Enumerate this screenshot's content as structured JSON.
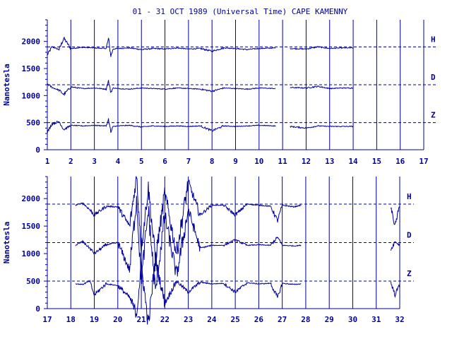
{
  "chart_data": [
    {
      "type": "line",
      "title": "01 - 31 OCT 1989 (Universal Time) CAPE KAMENNY",
      "ylabel": "Nanotesla",
      "xlim": [
        1,
        17
      ],
      "ylim": [
        0,
        2400
      ],
      "x_ticks": [
        "1",
        "2",
        "3",
        "4",
        "5",
        "6",
        "7",
        "8",
        "9",
        "10",
        "11",
        "12",
        "13",
        "14",
        "15",
        "16",
        "17"
      ],
      "y_ticks": [
        "0",
        "500",
        "1000",
        "1500",
        "2000"
      ],
      "grid": "vertical lines at each day",
      "reference_lines": {
        "H": 1900,
        "D": 1200,
        "Z": 500
      },
      "data_gaps": [
        [
          10.7,
          11.3
        ],
        [
          14.0,
          17.0
        ]
      ],
      "series": [
        {
          "name": "H",
          "base": 1880,
          "x": [
            1.0,
            1.2,
            1.5,
            1.7,
            2.0,
            2.5,
            3.0,
            3.5,
            3.6,
            3.7,
            3.8,
            4.0,
            4.5,
            5.0,
            5.5,
            6.0,
            6.5,
            7.0,
            7.5,
            8.0,
            8.5,
            9.0,
            9.5,
            10.0,
            10.7,
            11.3,
            12.0,
            12.5,
            13.0,
            13.5,
            14.0
          ],
          "values": [
            1750,
            1900,
            1850,
            2060,
            1870,
            1890,
            1880,
            1870,
            2050,
            1730,
            1860,
            1870,
            1880,
            1850,
            1870,
            1860,
            1880,
            1860,
            1870,
            1820,
            1880,
            1870,
            1850,
            1870,
            1880,
            1870,
            1860,
            1900,
            1870,
            1880,
            1880
          ]
        },
        {
          "name": "D",
          "base": 1130,
          "x": [
            1.0,
            1.2,
            1.5,
            1.7,
            2.0,
            2.5,
            3.0,
            3.5,
            3.6,
            3.7,
            3.8,
            4.0,
            4.5,
            5.0,
            5.5,
            6.0,
            6.5,
            7.0,
            7.5,
            8.0,
            8.5,
            9.0,
            9.5,
            10.0,
            10.7,
            11.3,
            12.0,
            12.5,
            13.0,
            13.5,
            14.0
          ],
          "values": [
            1220,
            1150,
            1100,
            1020,
            1160,
            1130,
            1140,
            1120,
            1270,
            1060,
            1140,
            1130,
            1120,
            1140,
            1130,
            1120,
            1140,
            1130,
            1120,
            1080,
            1140,
            1130,
            1120,
            1140,
            1130,
            1150,
            1140,
            1170,
            1130,
            1140,
            1140
          ]
        },
        {
          "name": "Z",
          "base": 440,
          "x": [
            1.0,
            1.2,
            1.5,
            1.7,
            2.0,
            2.5,
            3.0,
            3.5,
            3.6,
            3.7,
            3.8,
            4.0,
            4.5,
            5.0,
            5.5,
            6.0,
            6.5,
            7.0,
            7.5,
            8.0,
            8.5,
            9.0,
            9.5,
            10.0,
            10.7,
            11.3,
            12.0,
            12.5,
            13.0,
            13.5,
            14.0
          ],
          "values": [
            320,
            480,
            520,
            370,
            450,
            440,
            450,
            440,
            560,
            320,
            430,
            440,
            450,
            420,
            440,
            430,
            440,
            430,
            440,
            350,
            440,
            430,
            440,
            450,
            440,
            430,
            400,
            440,
            430,
            430,
            430
          ]
        }
      ],
      "labels": [
        "H",
        "D",
        "Z"
      ]
    },
    {
      "type": "line",
      "title": "",
      "ylabel": "Nanotesla",
      "xlim": [
        17,
        32
      ],
      "ylim": [
        0,
        2400
      ],
      "x_ticks": [
        "17",
        "18",
        "19",
        "20",
        "21",
        "22",
        "23",
        "24",
        "25",
        "26",
        "27",
        "28",
        "29",
        "30",
        "31",
        "32"
      ],
      "y_ticks": [
        "0",
        "500",
        "1000",
        "1500",
        "2000"
      ],
      "grid": "vertical lines at each day",
      "reference_lines": {
        "H": 1900,
        "D": 1200,
        "Z": 500
      },
      "data_gaps": [
        [
          27.8,
          31.6
        ]
      ],
      "series": [
        {
          "name": "H",
          "base": 1880,
          "x": [
            18.2,
            18.5,
            18.8,
            19.0,
            19.5,
            20.0,
            20.5,
            20.8,
            21.0,
            21.3,
            21.6,
            22.0,
            22.5,
            23.0,
            23.5,
            24.0,
            24.5,
            25.0,
            25.5,
            26.0,
            26.5,
            26.8,
            27.0,
            27.5,
            27.8,
            31.6,
            31.8,
            32.0
          ],
          "values": [
            1880,
            1920,
            1800,
            1700,
            1860,
            1850,
            1500,
            2400,
            1100,
            2200,
            900,
            2100,
            1000,
            2300,
            1700,
            1880,
            1880,
            1700,
            1900,
            1880,
            1860,
            1600,
            1880,
            1850,
            1880,
            1880,
            1500,
            1880
          ]
        },
        {
          "name": "D",
          "base": 1150,
          "x": [
            18.2,
            18.5,
            18.8,
            19.0,
            19.5,
            20.0,
            20.5,
            20.8,
            21.0,
            21.3,
            21.6,
            22.0,
            22.5,
            23.0,
            23.5,
            24.0,
            24.5,
            25.0,
            25.5,
            26.0,
            26.5,
            26.8,
            27.0,
            27.5,
            27.8,
            31.6,
            31.8,
            32.0
          ],
          "values": [
            1150,
            1220,
            1100,
            1000,
            1160,
            1200,
            700,
            2000,
            500,
            1800,
            300,
            1700,
            600,
            1800,
            1100,
            1150,
            1150,
            1250,
            1150,
            1160,
            1150,
            1300,
            1150,
            1140,
            1150,
            1050,
            1220,
            1150
          ]
        },
        {
          "name": "Z",
          "base": 450,
          "x": [
            18.2,
            18.5,
            18.8,
            19.0,
            19.5,
            20.0,
            20.5,
            20.8,
            21.0,
            21.3,
            21.6,
            22.0,
            22.5,
            23.0,
            23.5,
            24.0,
            24.5,
            25.0,
            25.5,
            26.0,
            26.5,
            26.8,
            27.0,
            27.5,
            27.8,
            31.6,
            31.8,
            32.0
          ],
          "values": [
            450,
            440,
            500,
            250,
            450,
            420,
            200,
            -100,
            800,
            -300,
            900,
            100,
            500,
            300,
            480,
            450,
            460,
            300,
            470,
            450,
            460,
            200,
            460,
            440,
            450,
            500,
            250,
            450
          ]
        }
      ],
      "labels": [
        "H",
        "D",
        "Z"
      ]
    }
  ]
}
